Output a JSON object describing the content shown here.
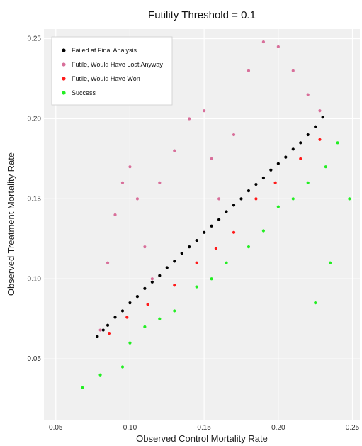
{
  "chart_data": {
    "type": "scatter",
    "title": "Futility Threshold = 0.1",
    "xlabel": "Observed Control Mortality Rate",
    "ylabel": "Observed Treatment Mortality Rate",
    "xlim": [
      0.042,
      0.255
    ],
    "ylim": [
      0.012,
      0.256
    ],
    "xticks": [
      0.05,
      0.1,
      0.15,
      0.2,
      0.25
    ],
    "xtick_labels": [
      "0.05",
      "0.10",
      "0.15",
      "0.20",
      "0.25"
    ],
    "yticks": [
      0.05,
      0.1,
      0.15,
      0.2,
      0.25
    ],
    "ytick_labels": [
      "0.05",
      "0.10",
      "0.15",
      "0.20",
      "0.25"
    ],
    "grid": true,
    "legend_position": "top-left",
    "series": [
      {
        "name": "Failed at Final Analysis",
        "color": "#000000",
        "points": [
          [
            0.078,
            0.064
          ],
          [
            0.082,
            0.068
          ],
          [
            0.085,
            0.071
          ],
          [
            0.09,
            0.076
          ],
          [
            0.095,
            0.08
          ],
          [
            0.1,
            0.085
          ],
          [
            0.105,
            0.089
          ],
          [
            0.11,
            0.094
          ],
          [
            0.115,
            0.098
          ],
          [
            0.12,
            0.102
          ],
          [
            0.125,
            0.107
          ],
          [
            0.13,
            0.111
          ],
          [
            0.135,
            0.116
          ],
          [
            0.14,
            0.12
          ],
          [
            0.145,
            0.124
          ],
          [
            0.15,
            0.129
          ],
          [
            0.155,
            0.133
          ],
          [
            0.16,
            0.137
          ],
          [
            0.165,
            0.142
          ],
          [
            0.17,
            0.146
          ],
          [
            0.175,
            0.15
          ],
          [
            0.18,
            0.155
          ],
          [
            0.185,
            0.159
          ],
          [
            0.19,
            0.163
          ],
          [
            0.195,
            0.168
          ],
          [
            0.2,
            0.172
          ],
          [
            0.205,
            0.176
          ],
          [
            0.21,
            0.181
          ],
          [
            0.215,
            0.185
          ],
          [
            0.22,
            0.19
          ],
          [
            0.225,
            0.195
          ],
          [
            0.23,
            0.201
          ]
        ]
      },
      {
        "name": "Futile, Would Have Lost Anyway",
        "color": "#d86f9a",
        "points": [
          [
            0.08,
            0.068
          ],
          [
            0.085,
            0.11
          ],
          [
            0.09,
            0.14
          ],
          [
            0.095,
            0.16
          ],
          [
            0.1,
            0.17
          ],
          [
            0.105,
            0.15
          ],
          [
            0.11,
            0.12
          ],
          [
            0.115,
            0.1
          ],
          [
            0.12,
            0.16
          ],
          [
            0.13,
            0.18
          ],
          [
            0.14,
            0.2
          ],
          [
            0.15,
            0.205
          ],
          [
            0.155,
            0.175
          ],
          [
            0.16,
            0.15
          ],
          [
            0.17,
            0.19
          ],
          [
            0.18,
            0.23
          ],
          [
            0.19,
            0.248
          ],
          [
            0.2,
            0.245
          ],
          [
            0.21,
            0.23
          ],
          [
            0.22,
            0.215
          ],
          [
            0.228,
            0.205
          ]
        ]
      },
      {
        "name": "Futile, Would Have Won",
        "color": "#ff1a1a",
        "points": [
          [
            0.086,
            0.066
          ],
          [
            0.098,
            0.076
          ],
          [
            0.112,
            0.084
          ],
          [
            0.13,
            0.096
          ],
          [
            0.145,
            0.11
          ],
          [
            0.158,
            0.119
          ],
          [
            0.17,
            0.129
          ],
          [
            0.185,
            0.15
          ],
          [
            0.198,
            0.16
          ],
          [
            0.215,
            0.175
          ],
          [
            0.228,
            0.187
          ]
        ]
      },
      {
        "name": "Success",
        "color": "#22ee22",
        "points": [
          [
            0.068,
            0.032
          ],
          [
            0.08,
            0.04
          ],
          [
            0.095,
            0.045
          ],
          [
            0.1,
            0.06
          ],
          [
            0.11,
            0.07
          ],
          [
            0.12,
            0.075
          ],
          [
            0.13,
            0.08
          ],
          [
            0.145,
            0.095
          ],
          [
            0.155,
            0.1
          ],
          [
            0.165,
            0.11
          ],
          [
            0.18,
            0.12
          ],
          [
            0.19,
            0.13
          ],
          [
            0.2,
            0.145
          ],
          [
            0.21,
            0.15
          ],
          [
            0.22,
            0.16
          ],
          [
            0.232,
            0.17
          ],
          [
            0.24,
            0.185
          ],
          [
            0.248,
            0.15
          ],
          [
            0.235,
            0.11
          ],
          [
            0.225,
            0.085
          ]
        ]
      }
    ]
  }
}
